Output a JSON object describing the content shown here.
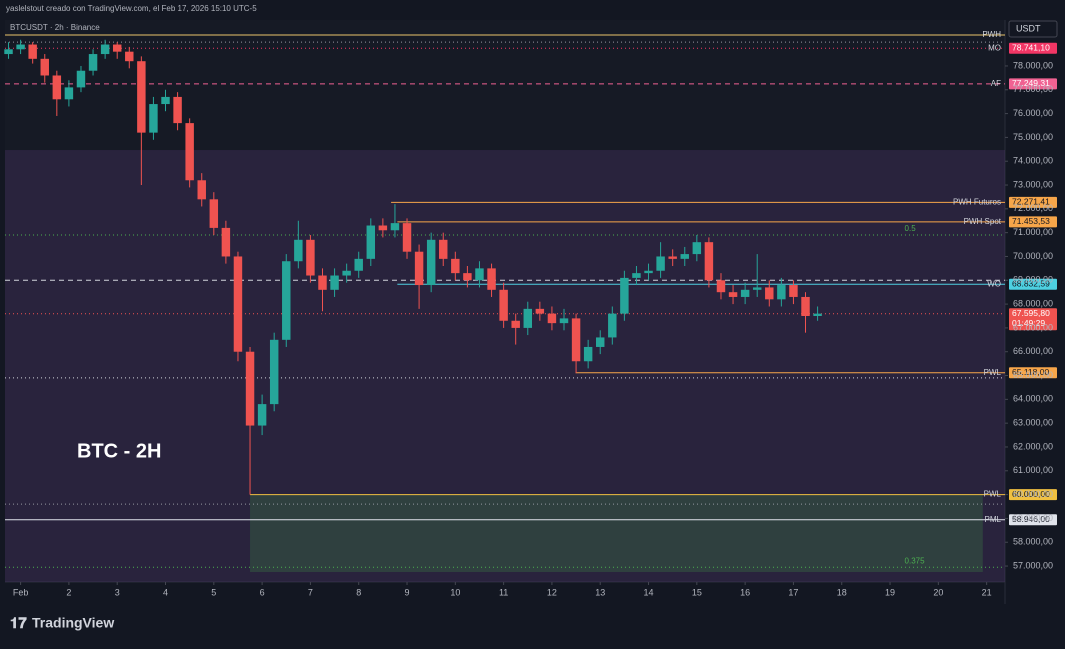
{
  "header": {
    "credit": "yaslelstout creado con TradingView.com, el Feb 17, 2026 15:10 UTC-5",
    "symbol": "BTCUSDT · 2h · Binance",
    "currency": "USDT"
  },
  "footer": {
    "brand": "TradingView"
  },
  "chart_data": {
    "type": "candlestick",
    "title": "BTC - 2H",
    "x": [
      0.75,
      1,
      1.25,
      1.5,
      1.75,
      2,
      2.25,
      2.5,
      2.75,
      3,
      3.25,
      3.5,
      3.75,
      4,
      4.25,
      4.5,
      4.75,
      5,
      5.25,
      5.5,
      5.75,
      6,
      6.25,
      6.5,
      6.75,
      7,
      7.25,
      7.5,
      7.75,
      8,
      8.25,
      8.5,
      8.75,
      9,
      9.25,
      9.5,
      9.75,
      10,
      10.25,
      10.5,
      10.75,
      11,
      11.25,
      11.5,
      11.75,
      12,
      12.25,
      12.5,
      12.75,
      13,
      13.25,
      13.5,
      13.75,
      14,
      14.25,
      14.5,
      14.75,
      15,
      15.25,
      15.5,
      15.75,
      16,
      16.25,
      16.5,
      16.75,
      17,
      17.25,
      17.5
    ],
    "open": [
      78500,
      78700,
      78900,
      78300,
      77600,
      76600,
      77100,
      77800,
      78500,
      78900,
      78600,
      78200,
      75200,
      76400,
      76700,
      75600,
      73200,
      72400,
      71200,
      70000,
      66000,
      62900,
      63800,
      66500,
      69800,
      70700,
      69200,
      68600,
      69200,
      69400,
      69900,
      71300,
      71100,
      71400,
      70200,
      68800,
      70700,
      69900,
      69300,
      69000,
      69500,
      68600,
      67300,
      67000,
      67800,
      67600,
      67200,
      67400,
      65600,
      66200,
      66600,
      67600,
      69100,
      69300,
      69400,
      70000,
      69900,
      70100,
      70600,
      69000,
      68500,
      68300,
      68600,
      68700,
      68200,
      68800,
      68300,
      67500
    ],
    "high": [
      79000,
      79100,
      79000,
      78500,
      77800,
      77400,
      78000,
      78700,
      79100,
      79000,
      78800,
      78400,
      76700,
      77000,
      76900,
      75800,
      73500,
      72700,
      71500,
      70200,
      66200,
      64200,
      66800,
      70100,
      71500,
      70900,
      69500,
      69500,
      69700,
      70200,
      71600,
      71600,
      72200,
      71600,
      70500,
      71000,
      71000,
      70200,
      69600,
      69800,
      69700,
      68900,
      67600,
      68100,
      68100,
      67900,
      67800,
      67600,
      66500,
      66900,
      67900,
      69400,
      69600,
      69700,
      70600,
      70300,
      70400,
      70900,
      70800,
      69300,
      68800,
      68900,
      70100,
      69000,
      69100,
      69000,
      68500,
      67900
    ],
    "low": [
      78300,
      78500,
      78100,
      77300,
      75900,
      76300,
      76900,
      77600,
      78300,
      78300,
      77900,
      73000,
      74900,
      76100,
      75300,
      72900,
      72100,
      70900,
      69700,
      65600,
      60000,
      62500,
      63500,
      66200,
      69500,
      68900,
      67700,
      68300,
      68900,
      69100,
      69600,
      70800,
      70800,
      69900,
      67800,
      68500,
      69600,
      69000,
      68700,
      68700,
      68300,
      67000,
      66300,
      66700,
      67300,
      66900,
      66900,
      65100,
      65300,
      65900,
      66300,
      67300,
      68800,
      69000,
      69100,
      69600,
      69600,
      69800,
      68700,
      68200,
      68000,
      68000,
      68300,
      67900,
      67900,
      68000,
      66800,
      67300
    ],
    "close": [
      78700,
      78900,
      78300,
      77600,
      76600,
      77100,
      77800,
      78500,
      78900,
      78600,
      78200,
      75200,
      76400,
      76700,
      75600,
      73200,
      72400,
      71200,
      70000,
      66000,
      62900,
      63800,
      66500,
      69800,
      70700,
      69200,
      68600,
      69200,
      69400,
      69900,
      71300,
      71100,
      71400,
      70200,
      68800,
      70700,
      69900,
      69300,
      69000,
      69500,
      68600,
      67300,
      67000,
      67800,
      67600,
      67200,
      67400,
      65600,
      66200,
      66600,
      67600,
      69100,
      69300,
      69400,
      70000,
      69900,
      70100,
      70600,
      69000,
      68500,
      68300,
      68600,
      68700,
      68200,
      68800,
      68300,
      67500,
      67600
    ],
    "up_color": "#26a69a",
    "down_color": "#ef5350",
    "xlim": [
      0.677,
      21.38
    ],
    "xticks": [
      {
        "value": 1,
        "label": "Feb"
      },
      2,
      3,
      4,
      5,
      6,
      7,
      8,
      9,
      10,
      11,
      12,
      13,
      14,
      15,
      16,
      17,
      18,
      19,
      20,
      21
    ],
    "ylim": [
      56330,
      79930
    ],
    "yticks": [
      {
        "value": 57000,
        "label": "57.000,00"
      },
      {
        "value": 58000,
        "label": "58.000,00"
      },
      {
        "value": 59000,
        "label": "59.000,00"
      },
      {
        "value": 60000,
        "label": "60.000,00"
      },
      {
        "value": 61000,
        "label": "61.000,00"
      },
      {
        "value": 62000,
        "label": "62.000,00"
      },
      {
        "value": 63000,
        "label": "63.000,00"
      },
      {
        "value": 64000,
        "label": "64.000,00"
      },
      {
        "value": 65000,
        "label": "65.000,00"
      },
      {
        "value": 66000,
        "label": "66.000,00"
      },
      {
        "value": 67000,
        "label": "67.000,00"
      },
      {
        "value": 68000,
        "label": "68.000,00"
      },
      {
        "value": 69000,
        "label": "69.000,00"
      },
      {
        "value": 70000,
        "label": "70.000,00"
      },
      {
        "value": 71000,
        "label": "71.000,00"
      },
      {
        "value": 72000,
        "label": "72.000,00"
      },
      {
        "value": 73000,
        "label": "73.000,00"
      },
      {
        "value": 74000,
        "label": "74.000,00"
      },
      {
        "value": 75000,
        "label": "75.000,00"
      },
      {
        "value": 76000,
        "label": "76.000,00"
      },
      {
        "value": 77000,
        "label": "77.000,00"
      },
      {
        "value": 78000,
        "label": "78.000,00"
      }
    ],
    "grid": false,
    "zones": [
      {
        "top": 74470,
        "color": "rgba(110,70,150,0.22)"
      },
      {
        "top": 60000,
        "bottom": 56750,
        "from": 5.75,
        "to": 20.92,
        "color": "rgba(60,120,70,0.35)"
      }
    ],
    "levels": [
      {
        "name": "PWH",
        "price": 79300,
        "color": "#e9c46a",
        "dash": "solid"
      },
      {
        "price": 79000,
        "color": "#9598a1",
        "dash": "dotted"
      },
      {
        "name": "MO",
        "price": 78741.1,
        "value_label": "78.741,10",
        "color": "#f23665",
        "dash": "dotted"
      },
      {
        "name": "AF",
        "price": 77249.31,
        "value_label": "77.249,31",
        "color": "#f06292",
        "dash": "dashed"
      },
      {
        "name": "PWH Futuros",
        "price": 72271.41,
        "value_label": "72.271,41",
        "color": "#f7a64a",
        "dash": "solid",
        "from": 8.67
      },
      {
        "name": "PWH Spot",
        "price": 71453.53,
        "value_label": "71.453,53",
        "color": "#f7a64a",
        "dash": "solid",
        "from": 8.8
      },
      {
        "name": "0.5",
        "price": 70900,
        "color": "#4caf50",
        "dash": "dotted",
        "label_at": 19.3
      },
      {
        "price": 69000,
        "color": "#d1d4dc",
        "dash": "dashed"
      },
      {
        "name": "WO",
        "price": 68832.59,
        "value_label": "68.832,59",
        "color": "#4dd0e1",
        "dash": "solid",
        "from": 8.8
      },
      {
        "price": 67595.8,
        "value_label": "67.595,80",
        "color": "#ef5350",
        "dash": "dotted",
        "countdown": "01:49:29"
      },
      {
        "name": "PWL",
        "price": 65118.0,
        "value_label": "65.118,00",
        "color": "#f7a64a",
        "dash": "solid",
        "from": 12.49
      },
      {
        "price": 64900,
        "color": "#d1d4dc",
        "dash": "dotted"
      },
      {
        "name": "PWL",
        "price": 60000.0,
        "value_label": "60.000,00",
        "color": "#f0c040",
        "dash": "solid",
        "from": 5.75
      },
      {
        "price": 59600,
        "color": "#9598a1",
        "dash": "dotted"
      },
      {
        "name": "PML",
        "price": 58946.0,
        "value_label": "58.946,00",
        "color": "#e0e3eb",
        "dash": "solid"
      },
      {
        "name": "0.375",
        "price": 56950,
        "color": "#4caf50",
        "dash": "dotted",
        "label_at": 19.3
      }
    ]
  }
}
